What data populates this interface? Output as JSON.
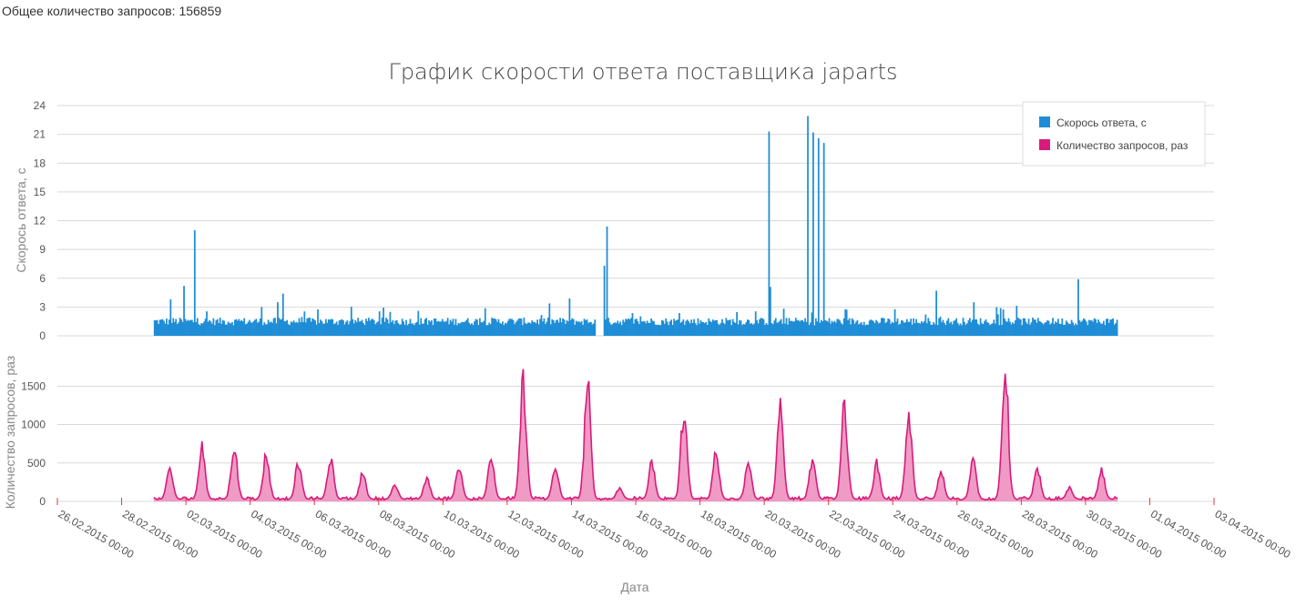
{
  "header": {
    "total_label": "Общее количество запросов: 156859"
  },
  "chart_data": {
    "type": "bar",
    "title": "График скорости ответа поставщика japarts",
    "xlabel": "Дата",
    "legend": {
      "placement": "top-right",
      "entries": [
        "Скорось ответа, с",
        "Количество запросов, раз"
      ]
    },
    "x_ticks": [
      "26.02.2015 00:00",
      "28.02.2015 00:00",
      "02.03.2015 00:00",
      "04.03.2015 00:00",
      "06.03.2015 00:00",
      "08.03.2015 00:00",
      "10.03.2015 00:00",
      "12.03.2015 00:00",
      "14.03.2015 00:00",
      "16.03.2015 00:00",
      "18.03.2015 00:00",
      "20.03.2015 00:00",
      "22.03.2015 00:00",
      "24.03.2015 00:00",
      "26.03.2015 00:00",
      "28.03.2015 00:00",
      "30.03.2015 00:00",
      "01.04.2015 00:00",
      "03.04.2015 00:00"
    ],
    "x_range": [
      "26.02.2015",
      "03.04.2015"
    ],
    "grid": true,
    "panels": [
      {
        "series_name": "Скорось ответа, с",
        "ylabel": "Скорось ответа, с",
        "ylim": [
          0,
          24
        ],
        "yticks": [
          "0",
          "3",
          "6",
          "9",
          "12",
          "15",
          "18",
          "21",
          "24"
        ],
        "color": "#1f8dd6",
        "type": "bar",
        "baseline": 1.5,
        "spikes": [
          {
            "date": "01.03.2015 22:00",
            "value": 5.2
          },
          {
            "date": "02.03.2015 06:00",
            "value": 11.0
          },
          {
            "date": "01.03.2015 12:00",
            "value": 3.8
          },
          {
            "date": "04.03.2015 08:00",
            "value": 3.0
          },
          {
            "date": "05.03.2015 00:00",
            "value": 4.4
          },
          {
            "date": "04.03.2015 20:00",
            "value": 3.5
          },
          {
            "date": "13.03.2015 22:00",
            "value": 3.9
          },
          {
            "date": "15.03.2015 00:00",
            "value": 7.3
          },
          {
            "date": "15.03.2015 02:00",
            "value": 11.4
          },
          {
            "date": "20.03.2015 03:00",
            "value": 21.3
          },
          {
            "date": "20.03.2015 04:00",
            "value": 5.1
          },
          {
            "date": "21.03.2015 08:00",
            "value": 22.9
          },
          {
            "date": "21.03.2015 12:00",
            "value": 21.2
          },
          {
            "date": "21.03.2015 16:00",
            "value": 20.6
          },
          {
            "date": "21.03.2015 20:00",
            "value": 20.1
          },
          {
            "date": "25.03.2015 08:00",
            "value": 4.7
          },
          {
            "date": "26.03.2015 12:00",
            "value": 3.5
          },
          {
            "date": "29.03.2015 18:00",
            "value": 5.9
          }
        ],
        "gap": [
          "14.03.2015 18:00",
          "14.03.2015 23:00"
        ],
        "data_range": [
          "01.03.2015 00:00",
          "31.03.2015 00:00"
        ]
      },
      {
        "series_name": "Количество запросов, раз",
        "ylabel": "Количество запросов, раз",
        "ylim": [
          0,
          1800
        ],
        "yticks": [
          "0",
          "500",
          "1000",
          "1500"
        ],
        "color": "#d81b7a",
        "fill": "#ee8fc0",
        "type": "area",
        "daily_peaks": [
          400,
          700,
          720,
          600,
          500,
          550,
          350,
          200,
          280,
          450,
          600,
          1600,
          450,
          1550,
          150,
          500,
          1200,
          650,
          500,
          1200,
          550,
          1250,
          480,
          1150,
          380,
          520,
          1800,
          420,
          150,
          380
        ],
        "data_range": [
          "01.03.2015 00:00",
          "31.03.2015 00:00"
        ]
      }
    ]
  }
}
